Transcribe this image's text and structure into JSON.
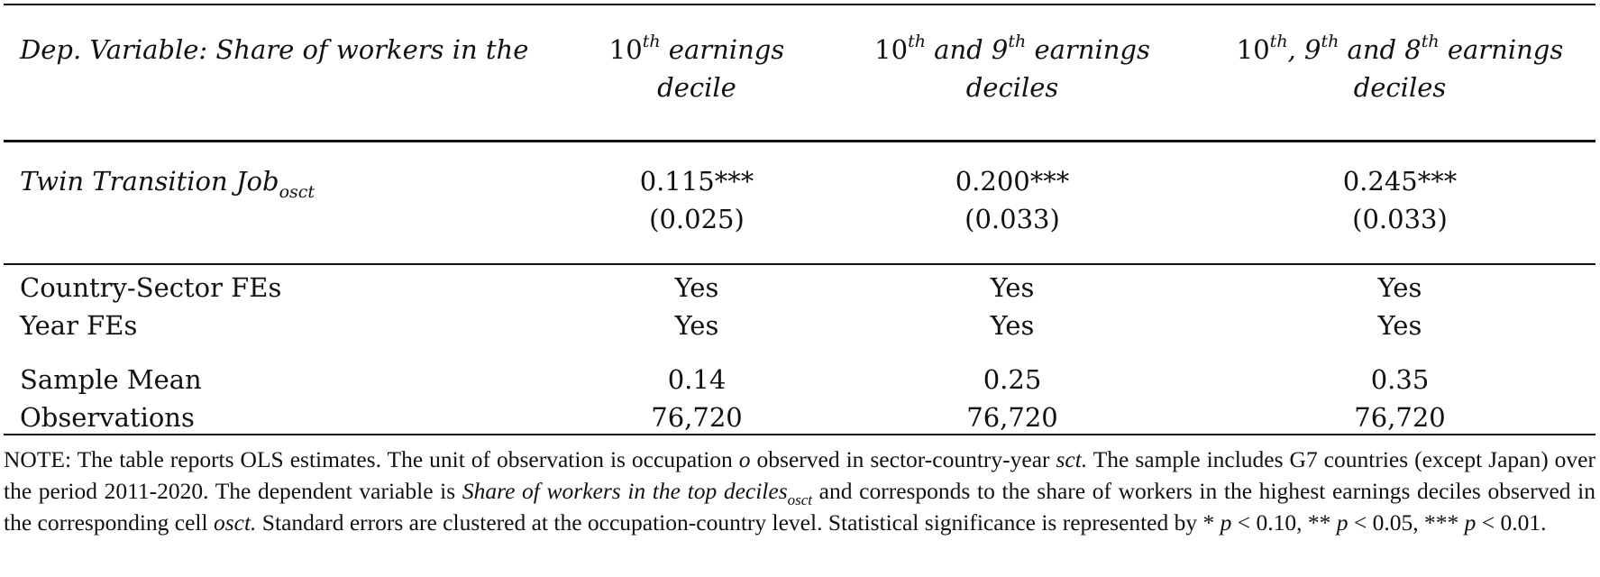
{
  "header": {
    "dep_var_label": "Dep. Variable: Share of workers in the",
    "col1": {
      "num": "10",
      "sup": "th",
      "rest": " earnings",
      "line2": "decile"
    },
    "col2": {
      "num1": "10",
      "sup1": "th",
      "mid": " and 9",
      "sup2": "th",
      "rest": " earnings",
      "line2": "deciles"
    },
    "col3": {
      "num1": "10",
      "sup1": "th",
      "mid1": ", 9",
      "sup2": "th",
      "mid2": " and 8",
      "sup3": "th",
      "rest": " earnings",
      "line2": "deciles"
    }
  },
  "regressor": {
    "label": "Twin Transition Job",
    "subscript": "osct",
    "coefficients": [
      "0.115***",
      "0.200***",
      "0.245***"
    ],
    "std_errors": [
      "(0.025)",
      "(0.033)",
      "(0.033)"
    ]
  },
  "rows": {
    "country_sector_fes": {
      "label": "Country-Sector FEs",
      "values": [
        "Yes",
        "Yes",
        "Yes"
      ]
    },
    "year_fes": {
      "label": "Year FEs",
      "values": [
        "Yes",
        "Yes",
        "Yes"
      ]
    },
    "sample_mean": {
      "label": "Sample Mean",
      "values": [
        "0.14",
        "0.25",
        "0.35"
      ]
    },
    "observations": {
      "label": "Observations",
      "values": [
        "76,720",
        "76,720",
        "76,720"
      ]
    }
  },
  "note": {
    "p1": "NOTE: The table reports OLS estimates. The unit of observation is occupation ",
    "o": "o",
    "p2": " observed in sector-country-year ",
    "sct": "sct.",
    "p3": " The sample includes G7 countries (except Japan) over the period 2011-2020. The dependent variable is ",
    "depvar": "Share of workers in the top deciles",
    "depvar_sub": "osct",
    "p4": " and corresponds to the share of workers in the highest earnings deciles observed in the corresponding cell ",
    "osct": "osct.",
    "p5": " Standard errors are clustered at the occupation-country level. Statistical significance is represented by * ",
    "p_sym": "p",
    "p6": " < 0.10, ** ",
    "p7": " < 0.05, *** ",
    "p8": " < 0.01."
  }
}
